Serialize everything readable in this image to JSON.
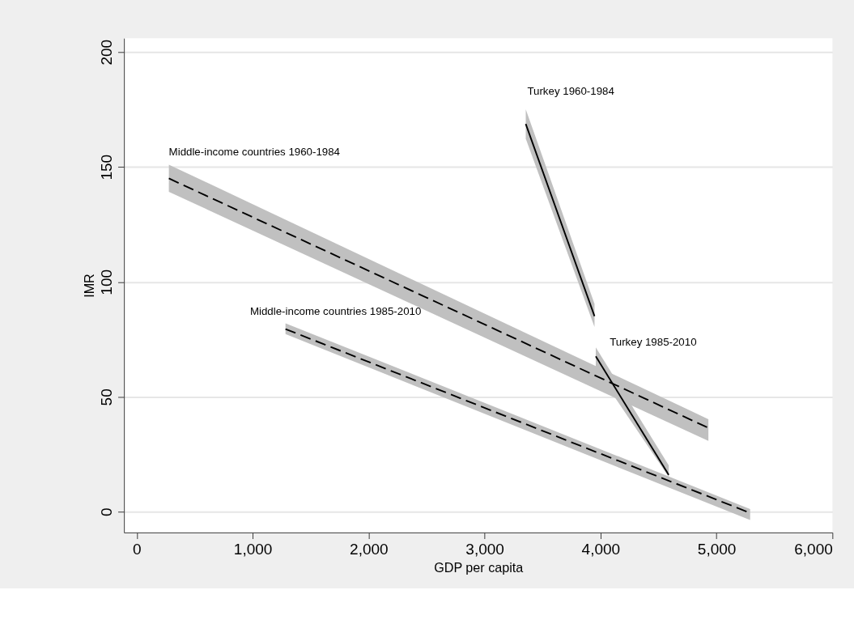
{
  "chart_data": {
    "type": "line",
    "xlabel": "GDP per capita",
    "ylabel": "IMR",
    "xlim": [
      -110,
      6000
    ],
    "ylim": [
      -9,
      206
    ],
    "xticks": [
      0,
      {
        "value": 1000,
        "label": "1,000"
      },
      {
        "value": 2000,
        "label": "2,000"
      },
      {
        "value": 3000,
        "label": "3,000"
      },
      {
        "value": 4000,
        "label": "4,000"
      },
      {
        "value": 5000,
        "label": "5,000"
      },
      {
        "value": 6000,
        "label": "6,000"
      }
    ],
    "yticks": [
      0,
      50,
      100,
      150,
      200
    ],
    "grid": "y",
    "legend": false,
    "series": [
      {
        "name": "Middle-income countries 1960-1984",
        "color": "#000000",
        "line_style": "dashed",
        "x": [
          277,
          4930
        ],
        "values": [
          145.0,
          36.5
        ],
        "lower": [
          139.2,
          30.8
        ],
        "upper": [
          151.0,
          40.3
        ]
      },
      {
        "name": "Middle-income countries 1985-2010",
        "color": "#000000",
        "line_style": "dashed",
        "x": [
          1283,
          5290
        ],
        "values": [
          79.5,
          -0.5
        ],
        "lower": [
          77.3,
          -3.6
        ],
        "upper": [
          82.0,
          1.2
        ]
      },
      {
        "name": "Turkey 1960-1984",
        "color": "#000000",
        "line_style": "solid",
        "x": [
          3355,
          3948
        ],
        "values": [
          168.7,
          85.1
        ],
        "lower": [
          162.3,
          80.4
        ],
        "upper": [
          175.1,
          90.4
        ]
      },
      {
        "name": "Turkey 1985-2010",
        "color": "#000000",
        "line_style": "solid",
        "x": [
          3959,
          4588
        ],
        "values": [
          67.6,
          16.1
        ],
        "lower": [
          62.0,
          15.2
        ],
        "upper": [
          71.5,
          20.2
        ]
      }
    ]
  }
}
